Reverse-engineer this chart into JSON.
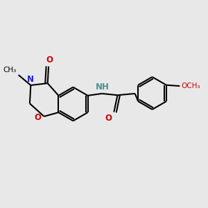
{
  "bg_color": "#e8e8e8",
  "bond_color": "#000000",
  "N_color": "#2222cc",
  "O_color": "#cc0000",
  "NH_color": "#4a9090",
  "line_width": 1.5,
  "font_size": 8.5,
  "fig_size": [
    3.0,
    3.0
  ],
  "dpi": 100,
  "xlim": [
    0,
    10
  ],
  "ylim": [
    0,
    10
  ]
}
